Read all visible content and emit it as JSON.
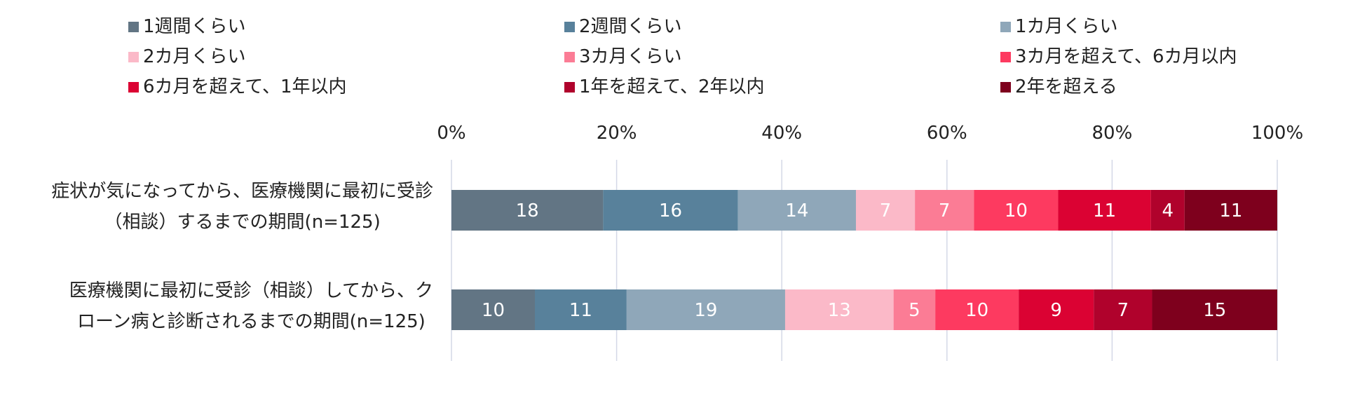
{
  "chart_data": {
    "type": "bar",
    "orientation": "horizontal",
    "stacked": "percent",
    "legend_position": "top",
    "grid": true,
    "xlim": [
      0,
      100
    ],
    "x_ticks": [
      "0%",
      "20%",
      "40%",
      "60%",
      "80%",
      "100%"
    ],
    "categories": [
      [
        "症状が気になってから、医療機関に最初に受診",
        "（相談）するまでの期間(n=125)"
      ],
      [
        "医療機関に最初に受診（相談）してから、ク",
        "ローン病と診断されるまでの期間(n=125)"
      ]
    ],
    "series": [
      {
        "name": "1週間くらい",
        "color": "#627584",
        "values": [
          18,
          10
        ]
      },
      {
        "name": "2週間くらい",
        "color": "#58819b",
        "values": [
          16,
          11
        ]
      },
      {
        "name": "1カ月くらい",
        "color": "#8fa7b9",
        "values": [
          14,
          19
        ]
      },
      {
        "name": "2カ月くらい",
        "color": "#fbb9c8",
        "values": [
          7,
          13
        ]
      },
      {
        "name": "3カ月くらい",
        "color": "#fb7c95",
        "values": [
          7,
          5
        ]
      },
      {
        "name": "3カ月を超えて、6カ月以内",
        "color": "#fd3a60",
        "values": [
          10,
          10
        ]
      },
      {
        "name": "6カ月を超えて、1年以内",
        "color": "#db0233",
        "values": [
          11,
          9
        ]
      },
      {
        "name": "1年を超えて、2年以内",
        "color": "#b0022c",
        "values": [
          4,
          7
        ]
      },
      {
        "name": "2年を超える",
        "color": "#7e001d",
        "values": [
          11,
          15
        ]
      }
    ],
    "value_label_color": "#ffffff",
    "grid_color": "#d4d8e6"
  }
}
